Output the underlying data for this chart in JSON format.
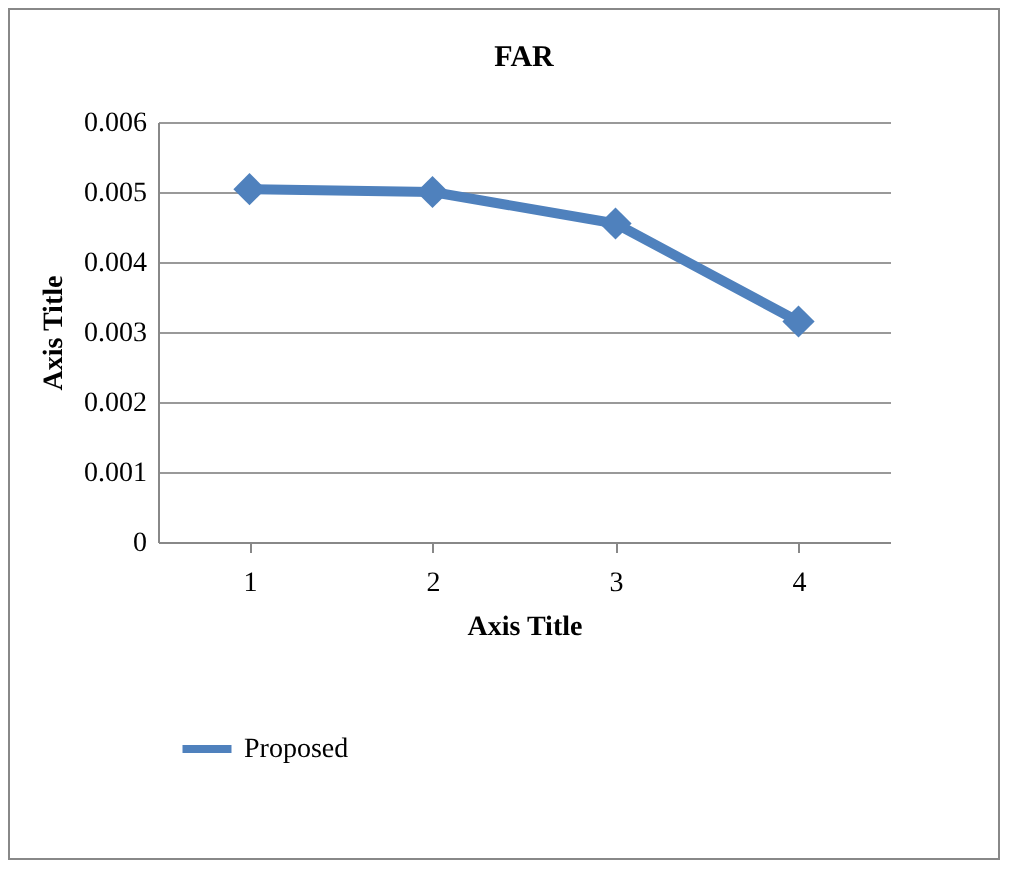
{
  "chart_data": {
    "type": "line",
    "title": "FAR",
    "xlabel": "Axis Title",
    "ylabel": "Axis Title",
    "categories": [
      "1",
      "2",
      "3",
      "4"
    ],
    "series": [
      {
        "name": "Proposed",
        "color": "#4f81bd",
        "values": [
          0.00504,
          0.005,
          0.00455,
          0.00315
        ]
      }
    ],
    "ylim": [
      0,
      0.006
    ],
    "yticks": [
      0,
      0.001,
      0.002,
      0.003,
      0.004,
      0.005,
      0.006
    ],
    "grid": "y",
    "legend": "bottom",
    "marker": "diamond",
    "line_style": "solid"
  }
}
